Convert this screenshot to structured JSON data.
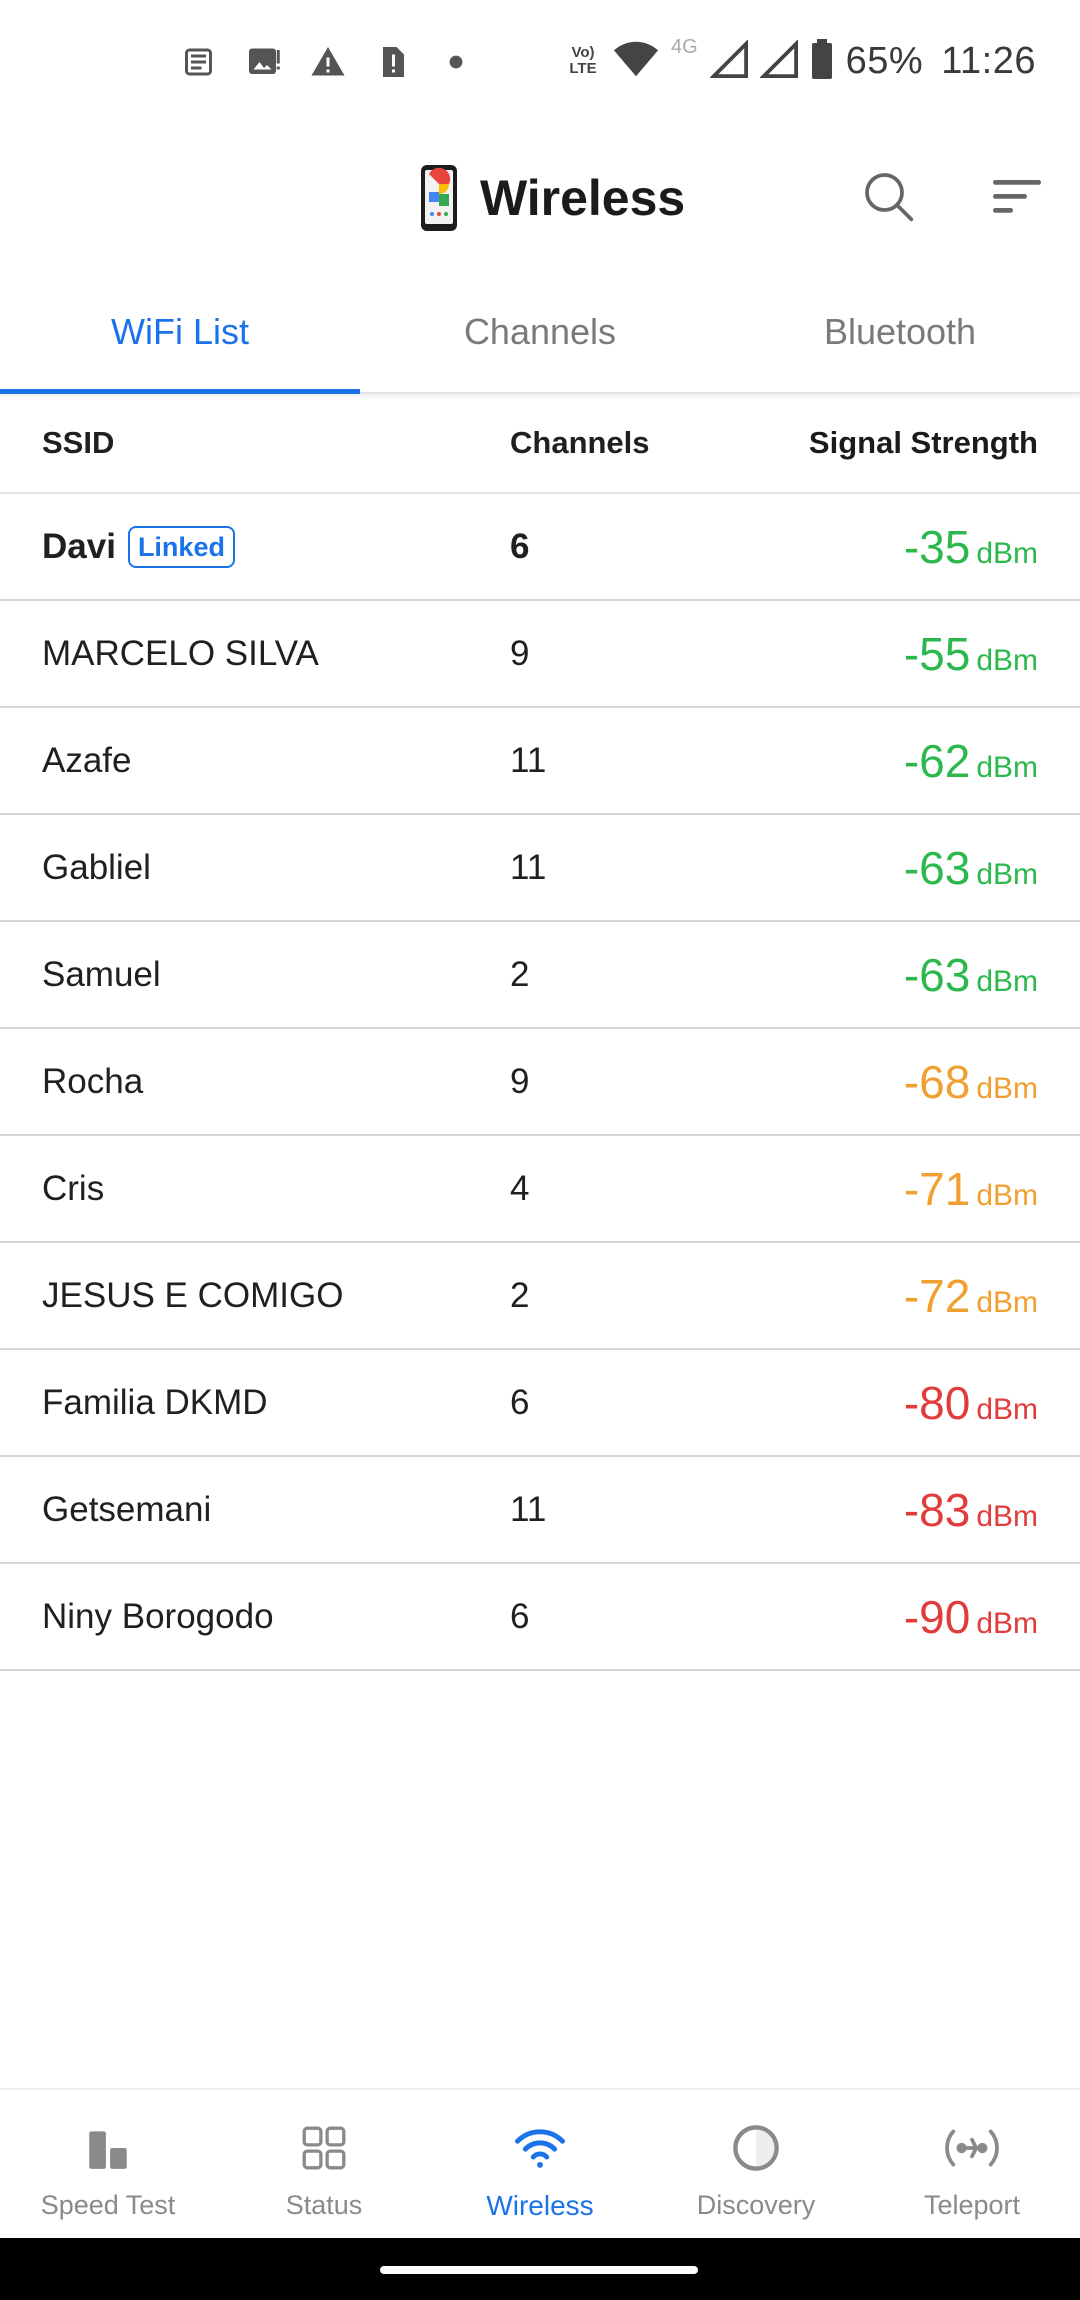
{
  "status_bar": {
    "icons_left": [
      "news-icon",
      "image-alert-icon",
      "warning-icon",
      "sim-alert-icon",
      "dot-icon"
    ],
    "volte": "Vo) LTE",
    "network": "4G",
    "battery": "65%",
    "time": "11:26"
  },
  "header": {
    "title": "Wireless",
    "logo_icon": "phone-logo-icon",
    "search_icon": "search-icon",
    "sort_icon": "sort-icon"
  },
  "tabs": [
    {
      "label": "WiFi List",
      "active": true
    },
    {
      "label": "Channels",
      "active": false
    },
    {
      "label": "Bluetooth",
      "active": false
    }
  ],
  "table": {
    "headers": {
      "ssid": "SSID",
      "channel": "Channels",
      "signal": "Signal Strength"
    },
    "rows": [
      {
        "ssid": "Davi",
        "badge": "Linked",
        "channel": "6",
        "signal": "-35",
        "unit": "dBm",
        "color": "#2db84d"
      },
      {
        "ssid": "MARCELO SILVA",
        "channel": "9",
        "signal": "-55",
        "unit": "dBm",
        "color": "#2db84d"
      },
      {
        "ssid": "Azafe",
        "channel": "11",
        "signal": "-62",
        "unit": "dBm",
        "color": "#2db84d"
      },
      {
        "ssid": "Gabliel",
        "channel": "11",
        "signal": "-63",
        "unit": "dBm",
        "color": "#2db84d"
      },
      {
        "ssid": "Samuel",
        "channel": "2",
        "signal": "-63",
        "unit": "dBm",
        "color": "#2db84d"
      },
      {
        "ssid": "Rocha",
        "channel": "9",
        "signal": "-68",
        "unit": "dBm",
        "color": "#f0a030"
      },
      {
        "ssid": "Cris",
        "channel": "4",
        "signal": "-71",
        "unit": "dBm",
        "color": "#f0a030"
      },
      {
        "ssid": "JESUS E COMIGO",
        "channel": "2",
        "signal": "-72",
        "unit": "dBm",
        "color": "#f0a030"
      },
      {
        "ssid": "Familia DKMD",
        "channel": "6",
        "signal": "-80",
        "unit": "dBm",
        "color": "#e03c3c"
      },
      {
        "ssid": "Getsemani",
        "channel": "11",
        "signal": "-83",
        "unit": "dBm",
        "color": "#e03c3c"
      },
      {
        "ssid": "Niny Borogodo",
        "channel": "6",
        "signal": "-90",
        "unit": "dBm",
        "color": "#e03c3c"
      }
    ]
  },
  "bottom_nav": [
    {
      "label": "Speed Test",
      "icon": "speed-test-icon",
      "active": false
    },
    {
      "label": "Status",
      "icon": "status-grid-icon",
      "active": false
    },
    {
      "label": "Wireless",
      "icon": "wifi-icon",
      "active": true
    },
    {
      "label": "Discovery",
      "icon": "discovery-icon",
      "active": false
    },
    {
      "label": "Teleport",
      "icon": "teleport-icon",
      "active": false
    }
  ],
  "colors": {
    "accent": "#1a73e8",
    "good": "#2db84d",
    "fair": "#f0a030",
    "poor": "#e03c3c"
  }
}
